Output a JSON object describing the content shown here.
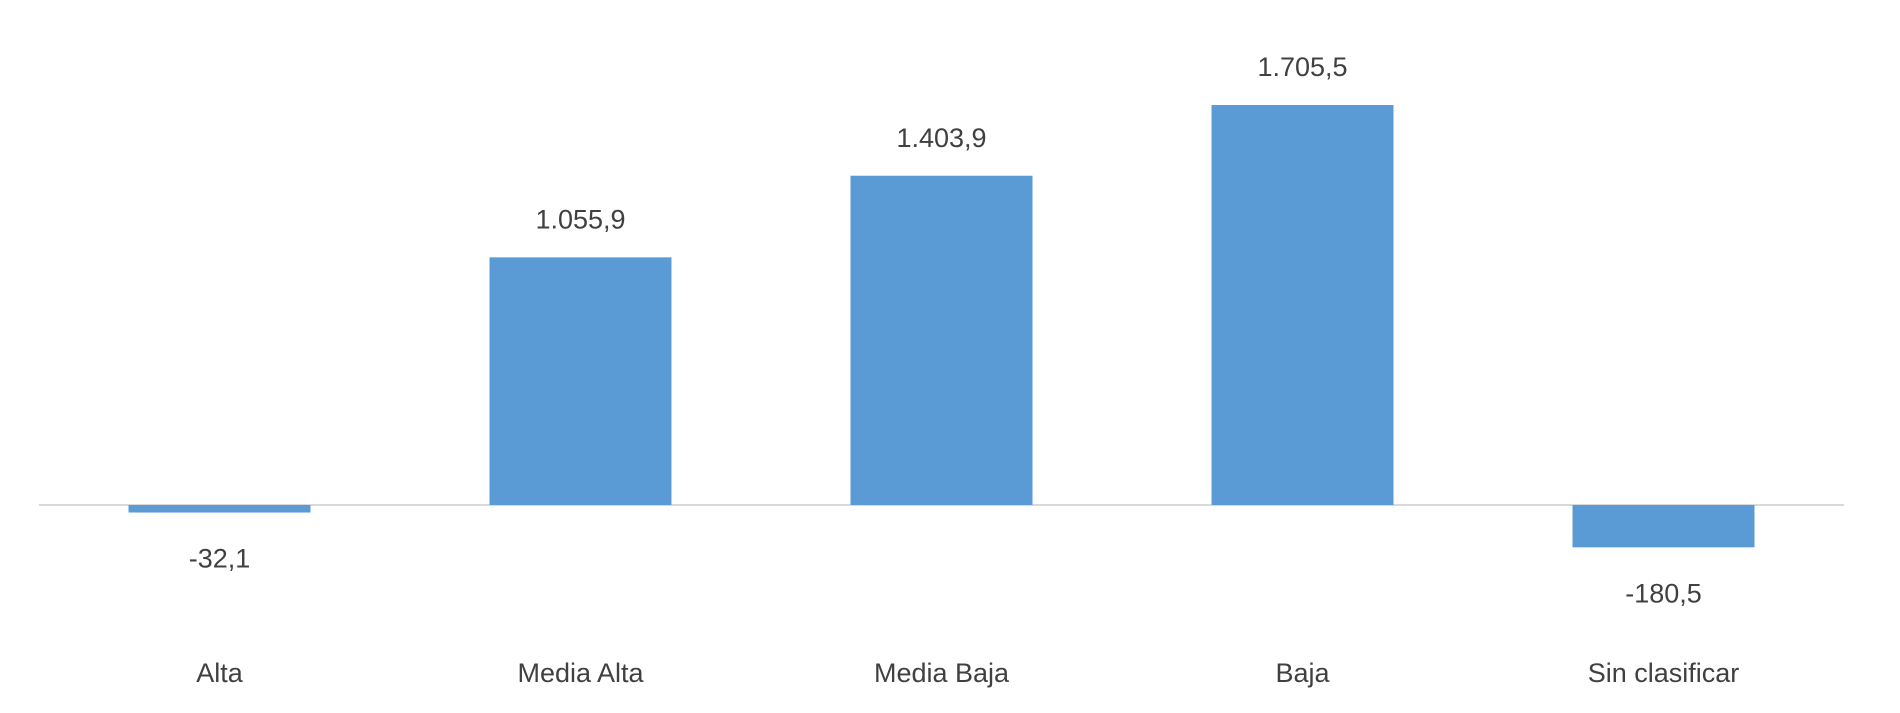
{
  "chart_data": {
    "type": "bar",
    "categories": [
      "Alta",
      "Media Alta",
      "Media Baja",
      "Baja",
      "Sin clasificar"
    ],
    "values": [
      -32.1,
      1055.9,
      1403.9,
      1705.5,
      -180.5
    ],
    "value_labels": [
      "-32,1",
      "1.055,9",
      "1.403,9",
      "1.705,5",
      "-180,5"
    ],
    "color": "#5b9bd5"
  }
}
